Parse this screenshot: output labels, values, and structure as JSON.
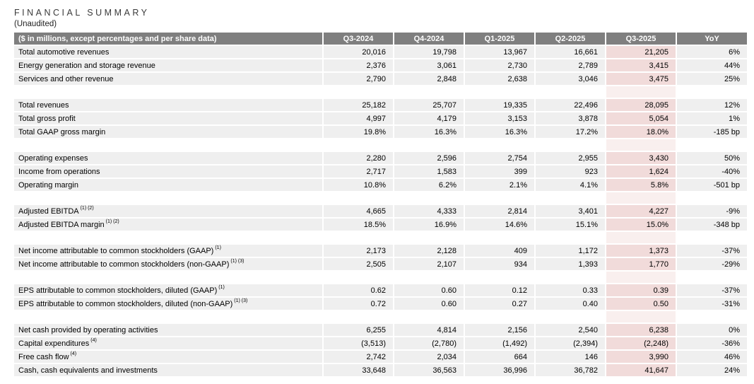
{
  "title": "F I N A N C I A L   S U M M A R Y",
  "title_plain": "FINANCIAL SUMMARY",
  "subtitle": "(Unaudited)",
  "colors": {
    "header_bg": "#7f7f7f",
    "header_text": "#ffffff",
    "row_bg": "#efefef",
    "highlight_bg": "#f1dbda",
    "highlight_spacer_bg": "#f9efee",
    "text": "#000000"
  },
  "table": {
    "label_header": "($ in millions, except percentages and per share data)",
    "columns": [
      "Q3-2024",
      "Q4-2024",
      "Q1-2025",
      "Q2-2025",
      "Q3-2025",
      "YoY"
    ],
    "highlight_column": "Q3-2025",
    "highlight_col_index": 4,
    "sections": [
      {
        "rows": [
          {
            "label": "Total automotive revenues",
            "sup": "",
            "values": [
              "20,016",
              "19,798",
              "13,967",
              "16,661",
              "21,205",
              "6%"
            ]
          },
          {
            "label": "Energy generation and storage revenue",
            "sup": "",
            "values": [
              "2,376",
              "3,061",
              "2,730",
              "2,789",
              "3,415",
              "44%"
            ]
          },
          {
            "label": "Services and other revenue",
            "sup": "",
            "values": [
              "2,790",
              "2,848",
              "2,638",
              "3,046",
              "3,475",
              "25%"
            ]
          }
        ]
      },
      {
        "rows": [
          {
            "label": "Total revenues",
            "sup": "",
            "values": [
              "25,182",
              "25,707",
              "19,335",
              "22,496",
              "28,095",
              "12%"
            ]
          },
          {
            "label": "Total gross profit",
            "sup": "",
            "values": [
              "4,997",
              "4,179",
              "3,153",
              "3,878",
              "5,054",
              "1%"
            ]
          },
          {
            "label": "Total GAAP gross margin",
            "sup": "",
            "values": [
              "19.8%",
              "16.3%",
              "16.3%",
              "17.2%",
              "18.0%",
              "-185 bp"
            ]
          }
        ]
      },
      {
        "rows": [
          {
            "label": "Operating expenses",
            "sup": "",
            "values": [
              "2,280",
              "2,596",
              "2,754",
              "2,955",
              "3,430",
              "50%"
            ]
          },
          {
            "label": "Income from operations",
            "sup": "",
            "values": [
              "2,717",
              "1,583",
              "399",
              "923",
              "1,624",
              "-40%"
            ]
          },
          {
            "label": "Operating margin",
            "sup": "",
            "values": [
              "10.8%",
              "6.2%",
              "2.1%",
              "4.1%",
              "5.8%",
              "-501 bp"
            ]
          }
        ]
      },
      {
        "rows": [
          {
            "label": "Adjusted EBITDA",
            "sup": "(1) (2)",
            "values": [
              "4,665",
              "4,333",
              "2,814",
              "3,401",
              "4,227",
              "-9%"
            ]
          },
          {
            "label": "Adjusted EBITDA margin",
            "sup": "(1) (2)",
            "values": [
              "18.5%",
              "16.9%",
              "14.6%",
              "15.1%",
              "15.0%",
              "-348 bp"
            ]
          }
        ]
      },
      {
        "rows": [
          {
            "label": "Net income attributable to common stockholders (GAAP)",
            "sup": "(1)",
            "values": [
              "2,173",
              "2,128",
              "409",
              "1,172",
              "1,373",
              "-37%"
            ]
          },
          {
            "label": "Net income attributable to common stockholders (non-GAAP)",
            "sup": "(1) (3)",
            "values": [
              "2,505",
              "2,107",
              "934",
              "1,393",
              "1,770",
              "-29%"
            ]
          }
        ]
      },
      {
        "rows": [
          {
            "label": "EPS attributable to common stockholders, diluted (GAAP)",
            "sup": "(1)",
            "values": [
              "0.62",
              "0.60",
              "0.12",
              "0.33",
              "0.39",
              "-37%"
            ]
          },
          {
            "label": "EPS attributable to common stockholders, diluted (non-GAAP)",
            "sup": "(1) (3)",
            "values": [
              "0.72",
              "0.60",
              "0.27",
              "0.40",
              "0.50",
              "-31%"
            ]
          }
        ]
      },
      {
        "rows": [
          {
            "label": "Net cash provided by operating activities",
            "sup": "",
            "values": [
              "6,255",
              "4,814",
              "2,156",
              "2,540",
              "6,238",
              "0%"
            ]
          },
          {
            "label": "Capital expenditures",
            "sup": "(4)",
            "values": [
              "(3,513)",
              "(2,780)",
              "(1,492)",
              "(2,394)",
              "(2,248)",
              "-36%"
            ]
          },
          {
            "label": "Free cash flow",
            "sup": "(4)",
            "values": [
              "2,742",
              "2,034",
              "664",
              "146",
              "3,990",
              "46%"
            ]
          },
          {
            "label": "Cash, cash equivalents and investments",
            "sup": "",
            "values": [
              "33,648",
              "36,563",
              "36,996",
              "36,782",
              "41,647",
              "24%"
            ]
          }
        ]
      }
    ]
  }
}
